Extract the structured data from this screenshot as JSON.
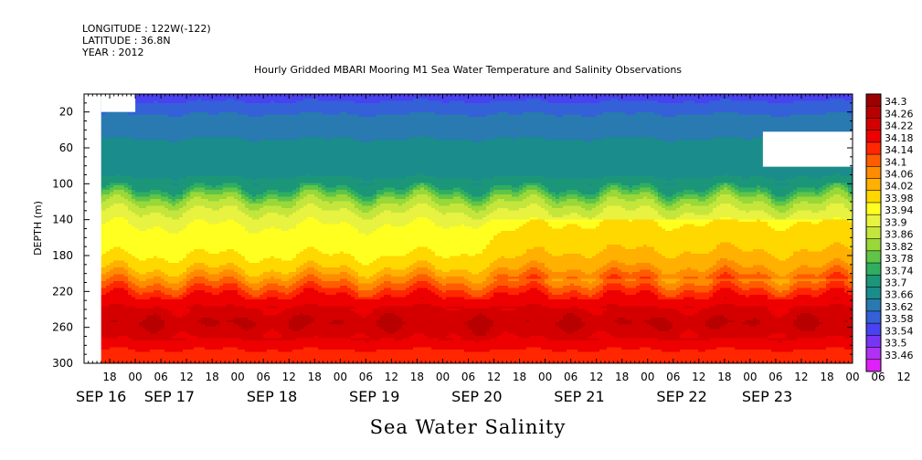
{
  "header": {
    "longitude": "LONGITUDE : 122W(-122)",
    "latitude": "LATITUDE : 36.8N",
    "year": "YEAR : 2012"
  },
  "chart_data": {
    "type": "heatmap",
    "title": "Hourly Gridded MBARI Mooring M1 Sea Water Temperature and Salinity Observations",
    "bottom_label": "Sea Water Salinity",
    "ylabel": "DEPTH (m)",
    "xlabel": "",
    "x_range_hours": [
      -12,
      168
    ],
    "y_range_m": [
      0,
      300
    ],
    "y_inverted": true,
    "y_ticks": [
      20,
      60,
      100,
      140,
      180,
      220,
      260,
      300
    ],
    "hour_ticks": [
      "18",
      "00",
      "06",
      "12",
      "18",
      "00",
      "06",
      "12",
      "18",
      "00",
      "06",
      "12",
      "18",
      "00",
      "06",
      "12",
      "18",
      "00",
      "06",
      "12",
      "18",
      "00",
      "06",
      "12",
      "18",
      "00",
      "06",
      "12",
      "18",
      "00",
      "06",
      "12"
    ],
    "date_labels": [
      {
        "label": "SEP 16",
        "hour": -8
      },
      {
        "label": "SEP 17",
        "hour": 8
      },
      {
        "label": "SEP 18",
        "hour": 32
      },
      {
        "label": "SEP 19",
        "hour": 56
      },
      {
        "label": "SEP 20",
        "hour": 80
      },
      {
        "label": "SEP 21",
        "hour": 104
      },
      {
        "label": "SEP 22",
        "hour": 128
      },
      {
        "label": "SEP 23",
        "hour": 148
      }
    ],
    "salinity_profile": [
      {
        "depth": 5,
        "salinity": 33.57
      },
      {
        "depth": 15,
        "salinity": 33.6
      },
      {
        "depth": 30,
        "salinity": 33.64
      },
      {
        "depth": 60,
        "salinity": 33.67
      },
      {
        "depth": 90,
        "salinity": 33.69
      },
      {
        "depth": 105,
        "salinity": 33.74
      },
      {
        "depth": 115,
        "salinity": 33.82
      },
      {
        "depth": 125,
        "salinity": 33.88
      },
      {
        "depth": 140,
        "salinity": 33.93
      },
      {
        "depth": 160,
        "salinity": 33.96
      },
      {
        "depth": 180,
        "salinity": 33.98
      },
      {
        "depth": 195,
        "salinity": 34.02
      },
      {
        "depth": 210,
        "salinity": 34.1
      },
      {
        "depth": 225,
        "salinity": 34.18
      },
      {
        "depth": 240,
        "salinity": 34.23
      },
      {
        "depth": 255,
        "salinity": 34.26
      },
      {
        "depth": 270,
        "salinity": 34.23
      },
      {
        "depth": 285,
        "salinity": 34.18
      },
      {
        "depth": 300,
        "salinity": 34.16
      }
    ],
    "missing_regions": [
      {
        "hour_start": -12,
        "hour_end": -8,
        "depth_start": 0,
        "depth_end": 300
      },
      {
        "hour_start": -8,
        "hour_end": 0,
        "depth_start": 0,
        "depth_end": 20
      },
      {
        "hour_start": 147,
        "hour_end": 168,
        "depth_start": 42,
        "depth_end": 81
      }
    ],
    "colorbar": {
      "labels": [
        "34.3",
        "34.26",
        "34.22",
        "34.18",
        "34.14",
        "34.1",
        "34.06",
        "34.02",
        "33.98",
        "33.94",
        "33.9",
        "33.86",
        "33.82",
        "33.78",
        "33.74",
        "33.7",
        "33.66",
        "33.62",
        "33.58",
        "33.54",
        "33.5",
        "33.46"
      ],
      "colors": [
        "#9c0000",
        "#b80000",
        "#d40000",
        "#ee0000",
        "#ff2600",
        "#ff5c00",
        "#ff8c00",
        "#ffb000",
        "#ffd800",
        "#ffff20",
        "#e8f240",
        "#c4e63c",
        "#98d838",
        "#60c448",
        "#30ae60",
        "#1c9678",
        "#1a8c8c",
        "#287ab0",
        "#3460d8",
        "#4842f0",
        "#7834f4",
        "#b030f4",
        "#e020f8"
      ]
    }
  }
}
